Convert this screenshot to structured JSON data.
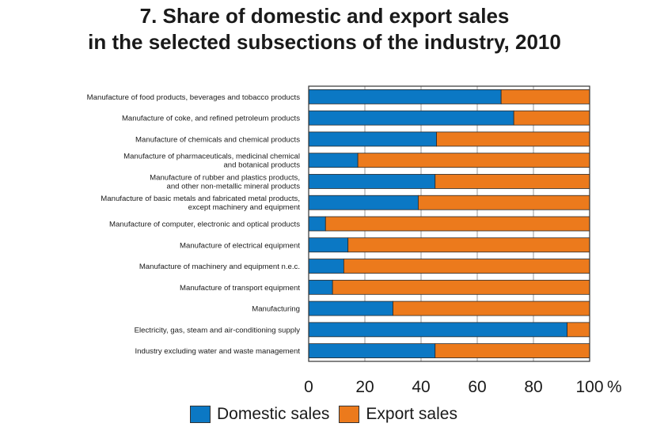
{
  "chart_data": {
    "type": "bar",
    "orientation": "horizontal",
    "stacked": true,
    "title_lines": [
      "7. Share of domestic and export sales",
      "in the selected subsections of the industry, 2010"
    ],
    "categories": [
      [
        "Manufacture of food products, beverages and tobacco products"
      ],
      [
        "Manufacture of coke, and refined petroleum products"
      ],
      [
        "Manufacture of chemicals and chemical products"
      ],
      [
        "Manufacture of pharmaceuticals, medicinal chemical",
        "and botanical products"
      ],
      [
        "Manufacture of rubber and plastics products,",
        "and other non-metallic mineral products"
      ],
      [
        "Manufacture of basic metals and fabricated metal products,",
        "except machinery and equipment"
      ],
      [
        "Manufacture of computer, electronic  and optical products"
      ],
      [
        "Manufacture of electrical equipment"
      ],
      [
        "Manufacture of machinery and equipment n.e.c."
      ],
      [
        "Manufacture of transport equipment"
      ],
      [
        "Manufacturing"
      ],
      [
        "Electricity, gas, steam and air-conditioning supply"
      ],
      [
        "Industry excluding water and waste management"
      ]
    ],
    "series": [
      {
        "name": "Domestic sales",
        "color": "#0b78c4",
        "values": [
          68.5,
          73,
          45.5,
          17.5,
          45,
          39,
          6,
          14,
          12.5,
          8.5,
          30,
          92,
          45
        ]
      },
      {
        "name": "Export sales",
        "color": "#ec7a1c",
        "values": [
          31.5,
          27,
          54.5,
          82.5,
          55,
          61,
          94,
          86,
          87.5,
          91.5,
          70,
          8,
          55
        ]
      }
    ],
    "xlim": [
      0,
      100
    ],
    "xticks": [
      "0",
      "20",
      "40",
      "60",
      "80",
      "100"
    ],
    "x_unit": "%",
    "grid": "vertical",
    "legend_position": "bottom"
  }
}
